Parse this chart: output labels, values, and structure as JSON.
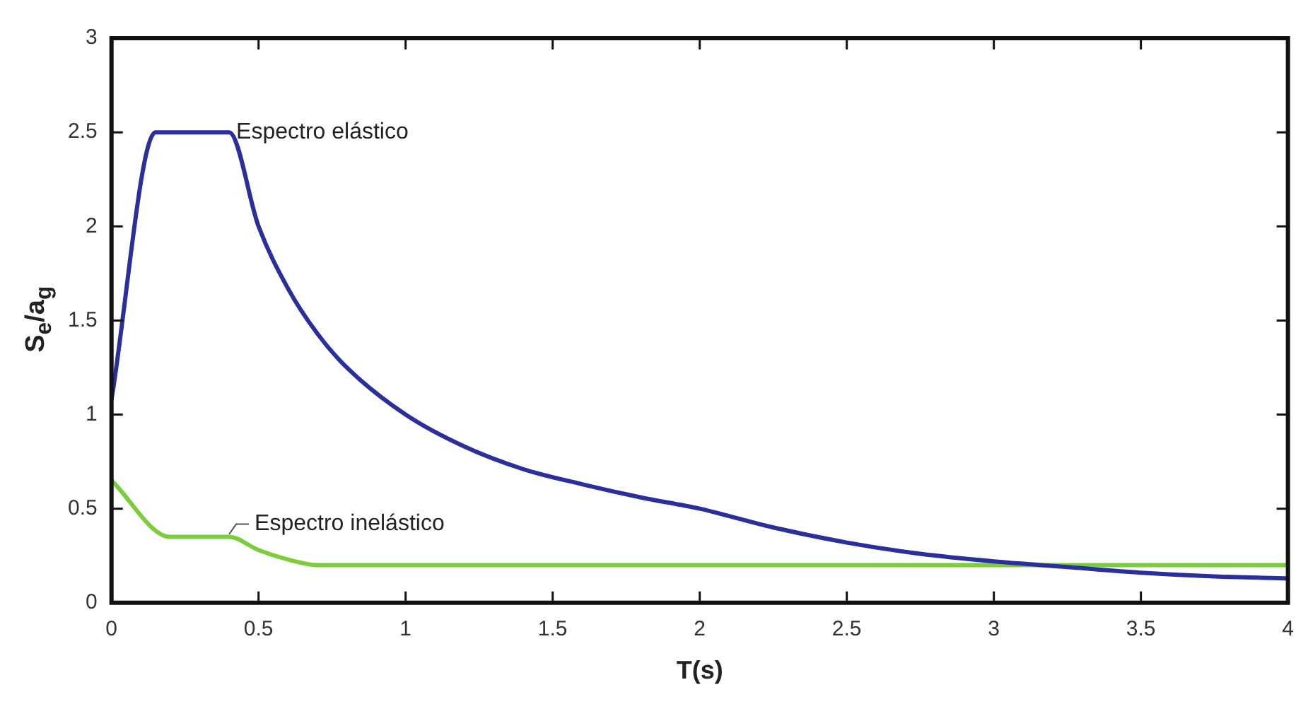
{
  "chart_data": {
    "type": "line",
    "xlabel": "T(s)",
    "ylabel": "S$_{e}$/a$_{g}$",
    "xlim": [
      0,
      4
    ],
    "xticks": [
      0,
      0.5,
      1,
      1.5,
      2,
      2.5,
      3,
      3.5,
      4
    ],
    "ylim": [
      0,
      3
    ],
    "yticks": [
      0,
      0.5,
      1,
      1.5,
      2,
      2.5,
      3
    ],
    "grid": false,
    "legend": false,
    "marker": "none",
    "line_style": "solid",
    "series": [
      {
        "name": "Espectro elástico",
        "color": "#2b2f9c",
        "x": [
          0,
          0.15,
          0.4,
          0.5,
          0.6,
          0.7,
          0.8,
          1,
          1.2,
          1.4,
          1.6,
          1.8,
          2,
          2.25,
          2.5,
          2.75,
          3,
          3.25,
          3.5,
          3.75,
          4
        ],
        "values": [
          1.08,
          2.5,
          2.5,
          2.0,
          1.67,
          1.43,
          1.25,
          1.0,
          0.83,
          0.71,
          0.63,
          0.56,
          0.5,
          0.4,
          0.32,
          0.26,
          0.22,
          0.19,
          0.16,
          0.14,
          0.13
        ]
      },
      {
        "name": "Espectro inelástico",
        "color": "#7ccc3c",
        "x": [
          0,
          0.2,
          0.4,
          0.5,
          0.6,
          0.7,
          4
        ],
        "values": [
          0.65,
          0.35,
          0.35,
          0.28,
          0.23,
          0.2,
          0.2
        ]
      }
    ]
  }
}
